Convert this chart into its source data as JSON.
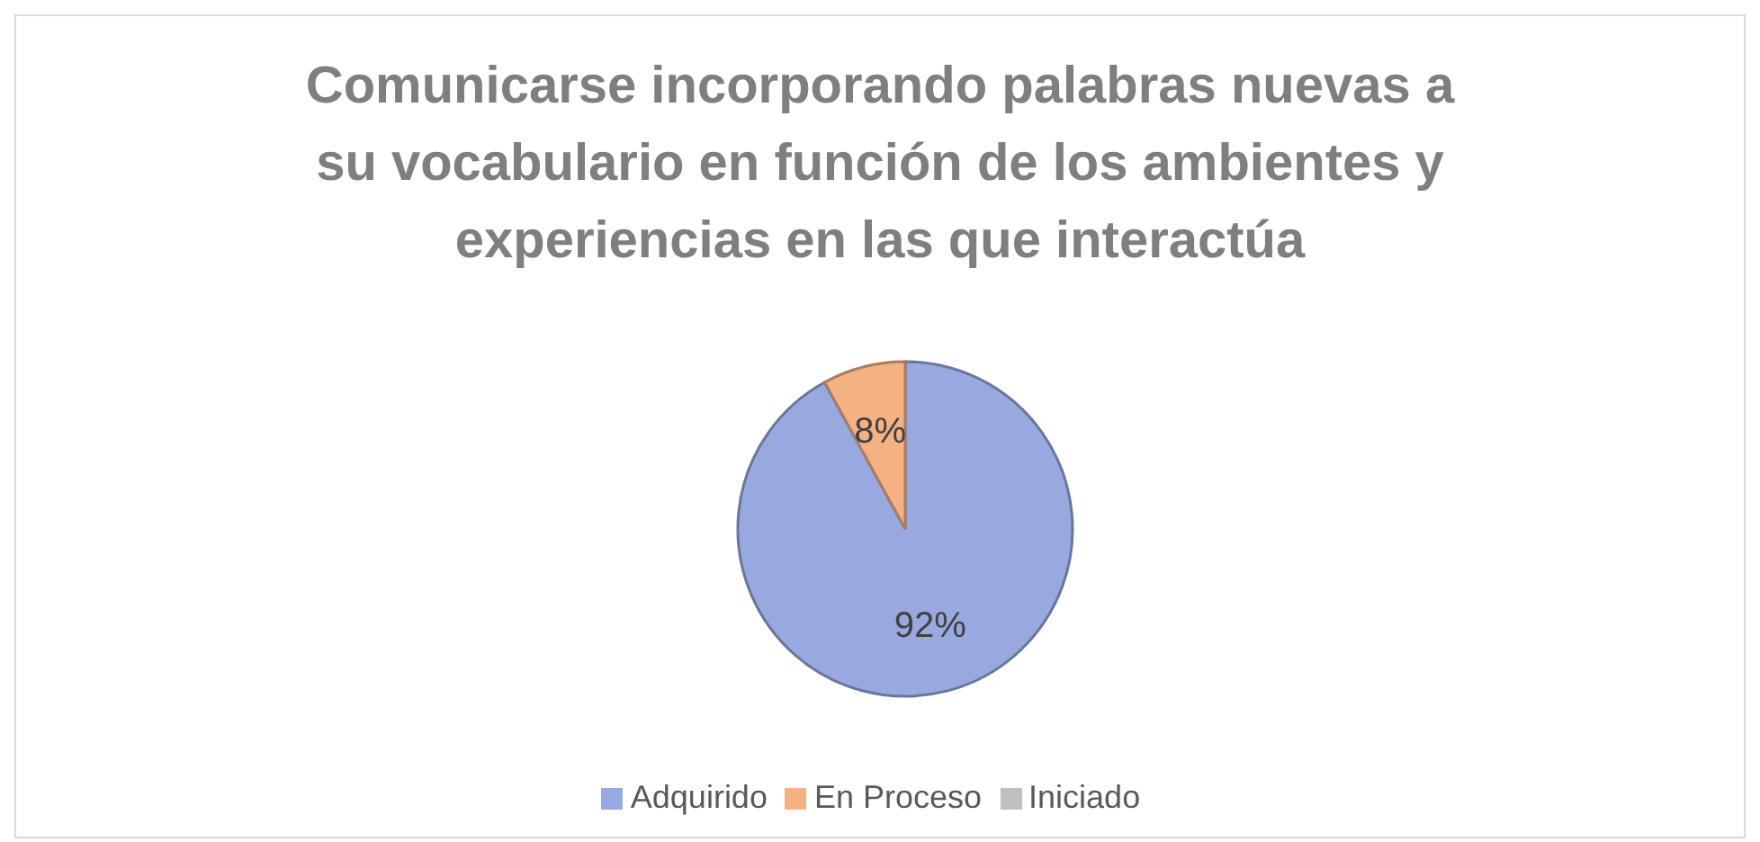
{
  "chart_data": {
    "type": "pie",
    "title": "Comunicarse incorporando palabras nuevas a su vocabulario en función de los ambientes y experiencias en las que interactúa",
    "categories": [
      "Adquirido",
      "En Proceso",
      "Iniciado"
    ],
    "values": [
      92,
      8,
      0
    ],
    "colors": [
      "#97a9de",
      "#f4b183",
      "#bfbfbf"
    ],
    "value_labels": [
      "92%",
      "8%",
      null
    ],
    "legend": "bottom"
  }
}
